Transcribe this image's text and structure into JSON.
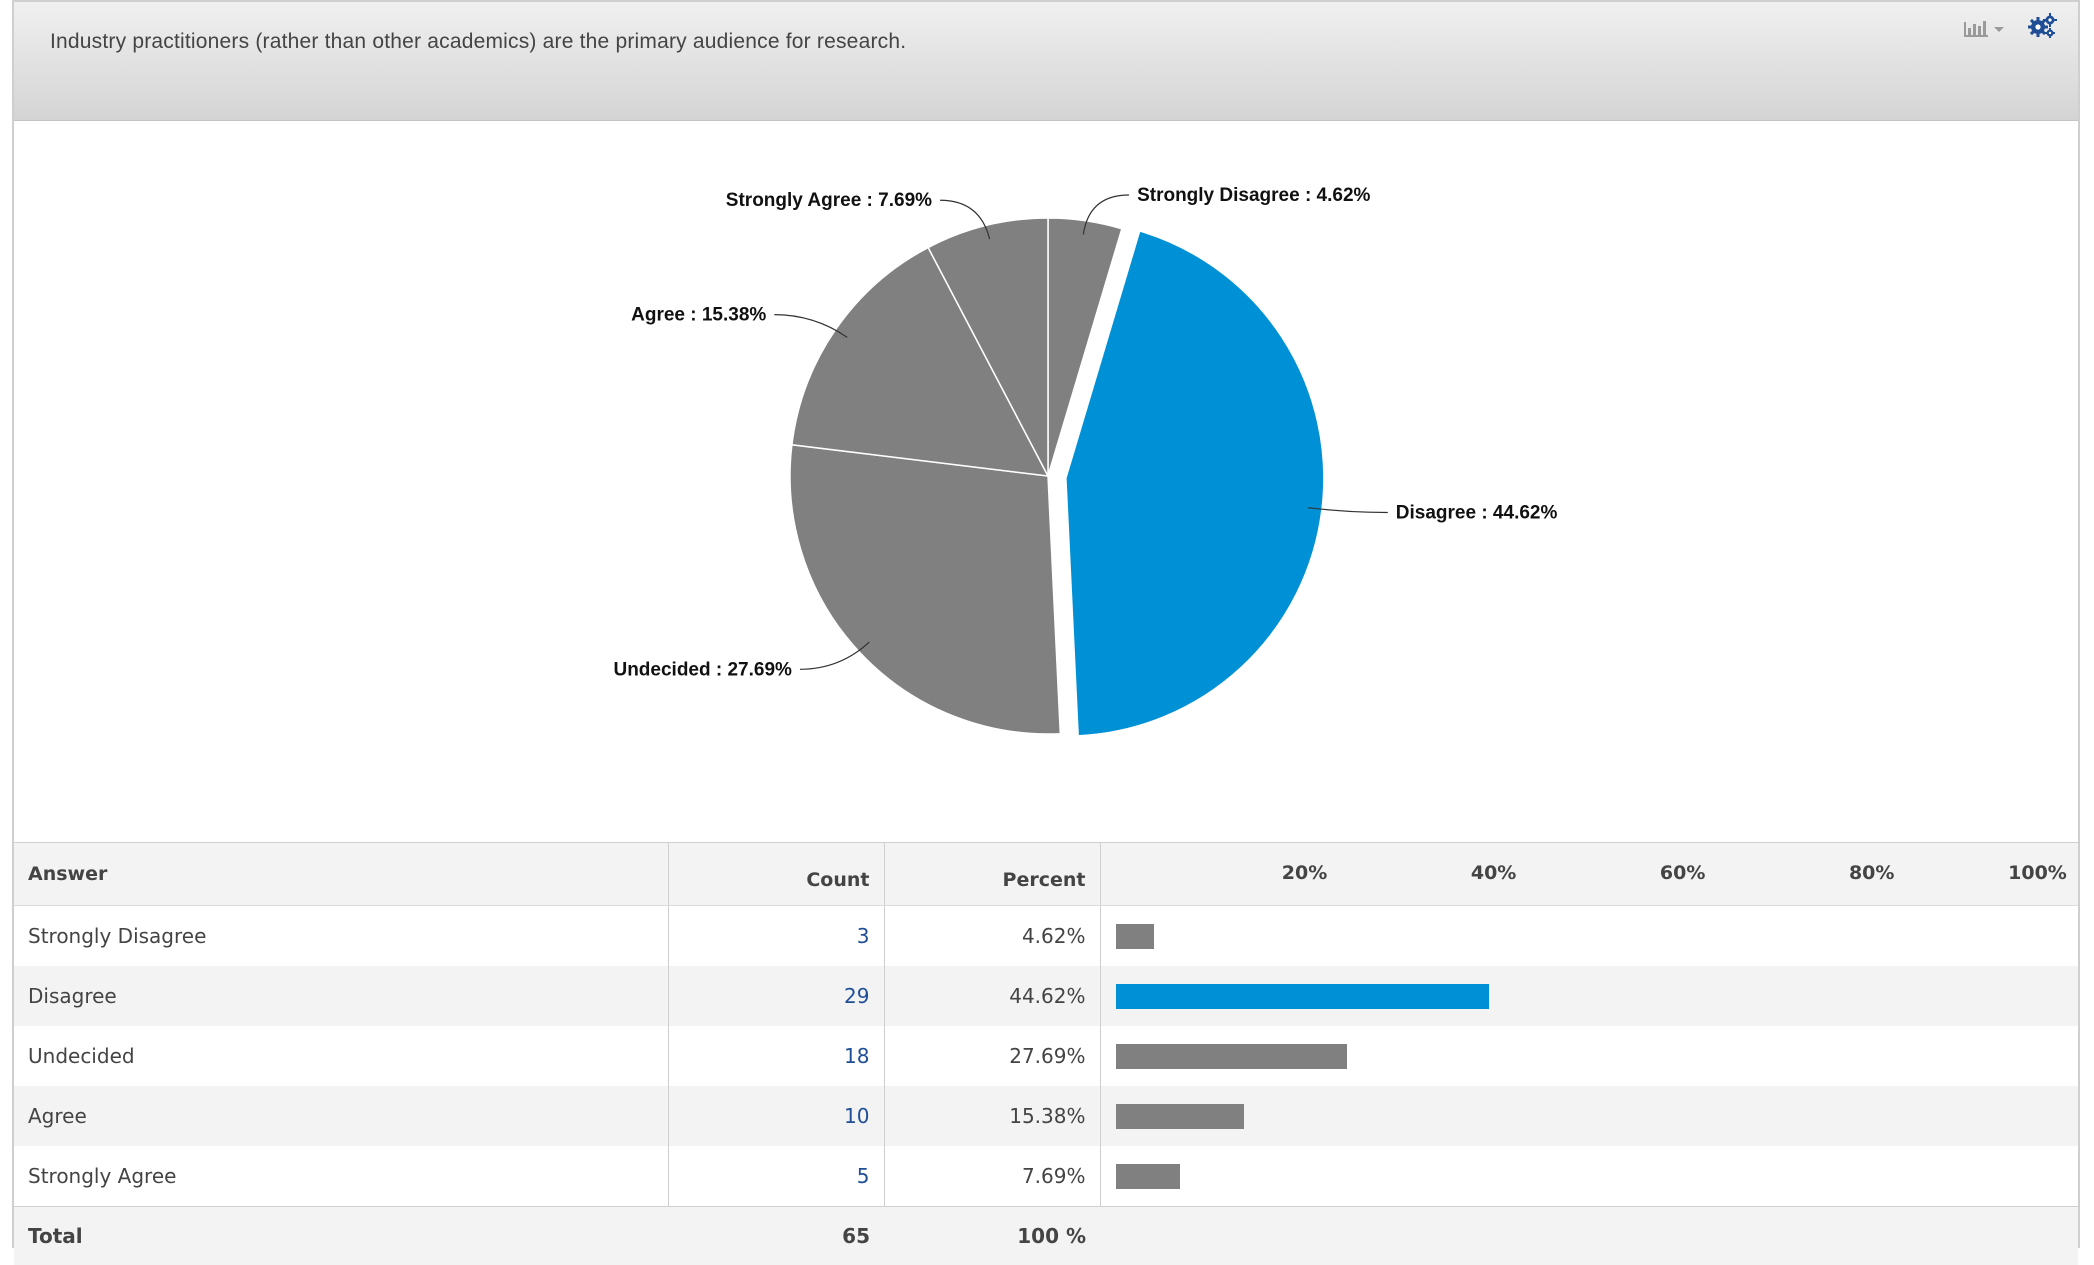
{
  "question": "Industry practitioners (rather than other academics) are the primary audience for research.",
  "toolbar": {
    "chart_type_icon": "bar-chart-icon",
    "settings_icon": "gears-icon"
  },
  "colors": {
    "highlight": "#0090d6",
    "muted": "#808080"
  },
  "chart_data": {
    "type": "pie",
    "labels": [
      "Strongly Disagree",
      "Disagree",
      "Undecided",
      "Agree",
      "Strongly Agree"
    ],
    "values": [
      4.62,
      44.62,
      27.69,
      15.38,
      7.69
    ],
    "exploded": "Disagree",
    "slice_labels": [
      "Strongly Disagree : 4.62%",
      "Disagree : 44.62%",
      "Undecided : 27.69%",
      "Agree : 15.38%",
      "Strongly Agree : 7.69%"
    ]
  },
  "table": {
    "headers": {
      "answer": "Answer",
      "count": "Count",
      "percent": "Percent"
    },
    "scale_ticks": [
      "20%",
      "40%",
      "60%",
      "80%",
      "100%"
    ],
    "rows": [
      {
        "answer": "Strongly Disagree",
        "count": "3",
        "percent": "4.62%",
        "value": 4.62,
        "highlight": false
      },
      {
        "answer": "Disagree",
        "count": "29",
        "percent": "44.62%",
        "value": 44.62,
        "highlight": true
      },
      {
        "answer": "Undecided",
        "count": "18",
        "percent": "27.69%",
        "value": 27.69,
        "highlight": false
      },
      {
        "answer": "Agree",
        "count": "10",
        "percent": "15.38%",
        "value": 15.38,
        "highlight": false
      },
      {
        "answer": "Strongly Agree",
        "count": "5",
        "percent": "7.69%",
        "value": 7.69,
        "highlight": false
      }
    ],
    "total": {
      "label": "Total",
      "count": "65",
      "percent": "100 %"
    }
  }
}
